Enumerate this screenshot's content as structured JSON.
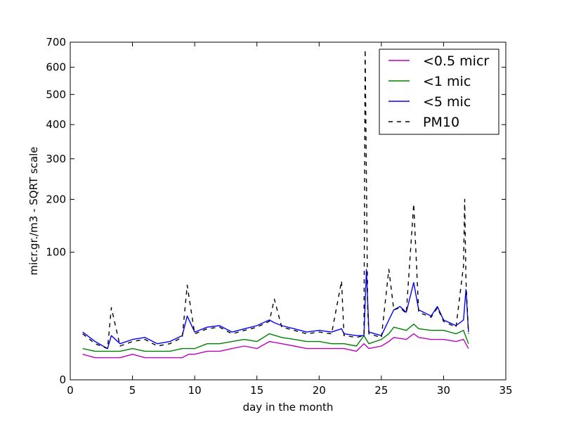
{
  "chart_data": {
    "type": "line",
    "xlabel": "day in the month",
    "ylabel": "micr.gr./m3 - SQRT scale",
    "yscale": "sqrt",
    "xlim": [
      0,
      35
    ],
    "ylim": [
      0,
      700
    ],
    "xticks": [
      "0",
      "5",
      "10",
      "15",
      "20",
      "25",
      "30",
      "35"
    ],
    "yticks": [
      "0",
      "100",
      "200",
      "300",
      "400",
      "500",
      "600",
      "700"
    ],
    "legend_position": "top-right",
    "grid": false,
    "series": [
      {
        "name": "<0.5 micr",
        "color": "#bf00bf",
        "dash": "solid",
        "x": [
          1.0,
          2.0,
          3.0,
          4.0,
          5.0,
          6.0,
          7.0,
          8.0,
          9.0,
          9.5,
          10.0,
          11.0,
          12.0,
          13.0,
          14.0,
          15.0,
          16.0,
          17.0,
          18.0,
          19.0,
          20.0,
          21.0,
          22.0,
          23.0,
          23.6,
          24.0,
          25.0,
          25.6,
          26.0,
          27.0,
          27.6,
          28.0,
          29.0,
          30.0,
          31.0,
          31.6,
          32.0
        ],
        "y": [
          4,
          3,
          3,
          3,
          4,
          3,
          3,
          3,
          3,
          4,
          4,
          5,
          5,
          6,
          7,
          6,
          9,
          8,
          7,
          6,
          6,
          6,
          6,
          5,
          8,
          6,
          7,
          9,
          11,
          10,
          13,
          11,
          10,
          10,
          9,
          10,
          6
        ]
      },
      {
        "name": "<1 mic",
        "color": "#008000",
        "dash": "solid",
        "x": [
          1.0,
          2.0,
          3.0,
          4.0,
          5.0,
          6.0,
          7.0,
          8.0,
          9.0,
          9.5,
          10.0,
          11.0,
          12.0,
          13.0,
          14.0,
          15.0,
          16.0,
          17.0,
          18.0,
          19.0,
          20.0,
          21.0,
          22.0,
          23.0,
          23.6,
          24.0,
          25.0,
          25.6,
          26.0,
          27.0,
          27.6,
          28.0,
          29.0,
          30.0,
          31.0,
          31.6,
          32.0
        ],
        "y": [
          6,
          5,
          5,
          5,
          6,
          5,
          5,
          5,
          6,
          6,
          6,
          8,
          8,
          9,
          10,
          9,
          13,
          11,
          10,
          9,
          9,
          8,
          8,
          7,
          12,
          8,
          10,
          13,
          17,
          15,
          19,
          16,
          15,
          15,
          13,
          15,
          8
        ]
      },
      {
        "name": "<5 mic",
        "color": "#0000ff",
        "dash": "solid",
        "x": [
          1.0,
          2.0,
          3.0,
          3.3,
          4.0,
          5.0,
          6.0,
          7.0,
          8.0,
          9.0,
          9.4,
          10.0,
          11.0,
          12.0,
          13.0,
          14.0,
          15.0,
          16.0,
          16.4,
          17.0,
          18.0,
          19.0,
          20.0,
          21.0,
          21.8,
          22.0,
          23.0,
          23.6,
          23.8,
          24.0,
          25.0,
          25.6,
          26.0,
          26.5,
          27.0,
          27.6,
          28.0,
          29.0,
          29.5,
          30.0,
          31.0,
          31.6,
          31.8,
          32.0
        ],
        "y": [
          14,
          9,
          6,
          12,
          8,
          10,
          11,
          8,
          9,
          12,
          25,
          14,
          17,
          18,
          14,
          16,
          18,
          22,
          20,
          18,
          16,
          14,
          15,
          14,
          16,
          13,
          12,
          12,
          75,
          14,
          12,
          22,
          30,
          33,
          28,
          58,
          30,
          25,
          33,
          22,
          18,
          22,
          50,
          14
        ]
      },
      {
        "name": "PM10",
        "color": "#000000",
        "dash": "dashed",
        "x": [
          1.0,
          2.0,
          3.0,
          3.3,
          4.0,
          5.0,
          6.0,
          7.0,
          8.0,
          9.0,
          9.4,
          10.0,
          11.0,
          12.0,
          13.0,
          14.0,
          15.0,
          16.0,
          16.4,
          17.0,
          18.0,
          19.0,
          20.0,
          21.0,
          21.8,
          22.0,
          23.0,
          23.6,
          23.7,
          23.9,
          24.0,
          25.0,
          25.6,
          26.0,
          26.5,
          27.0,
          27.6,
          28.0,
          29.0,
          29.5,
          30.0,
          31.0,
          31.6,
          31.7,
          31.8,
          32.0
        ],
        "y": [
          13,
          8,
          6,
          32,
          7,
          9,
          10,
          7,
          8,
          11,
          55,
          13,
          16,
          17,
          13,
          15,
          17,
          21,
          40,
          17,
          15,
          13,
          14,
          13,
          60,
          12,
          11,
          12,
          670,
          30,
          13,
          11,
          75,
          30,
          32,
          27,
          190,
          28,
          24,
          32,
          21,
          17,
          80,
          200,
          60,
          13
        ]
      }
    ]
  }
}
